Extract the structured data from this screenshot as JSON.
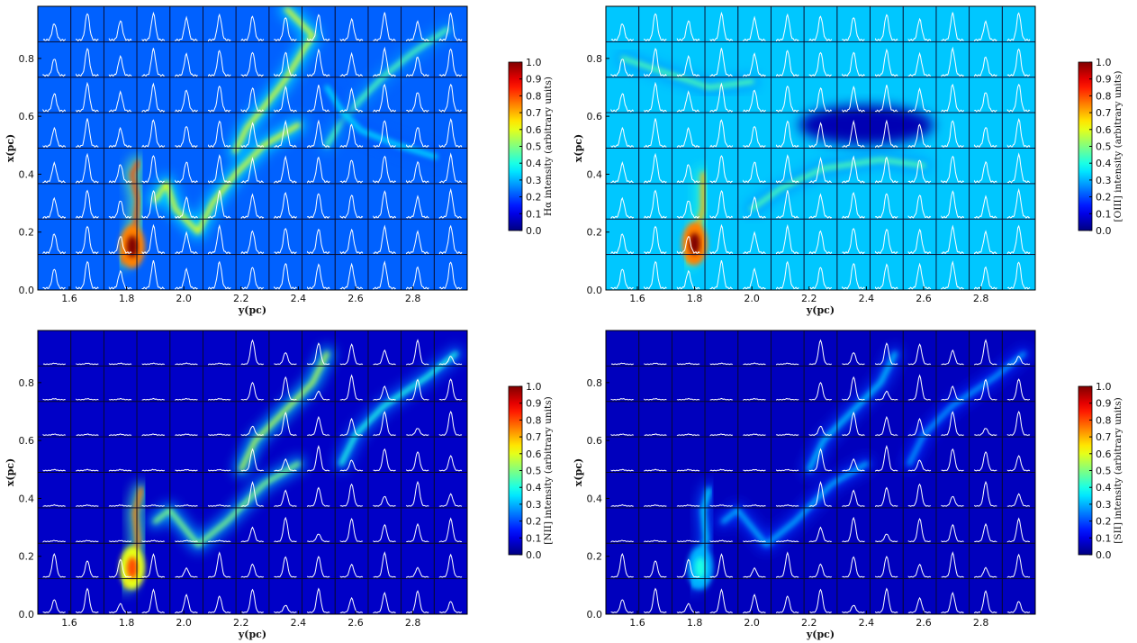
{
  "chart_data": [
    {
      "type": "heatmap",
      "xlabel": "y(pc)",
      "ylabel": "x(pc)",
      "xticks": [
        "1.6",
        "1.8",
        "2.0",
        "2.2",
        "2.4",
        "2.6",
        "2.8"
      ],
      "yticks": [
        "0.0",
        "0.2",
        "0.4",
        "0.6",
        "0.8"
      ],
      "xlim": [
        1.49,
        2.99
      ],
      "ylim": [
        0.0,
        0.98
      ],
      "colorbar_label": "Hα intensity (arbitrary units)",
      "colorbar_ticks": [
        "0.0",
        "0.1",
        "0.2",
        "0.3",
        "0.4",
        "0.5",
        "0.6",
        "0.7",
        "0.8",
        "0.9",
        "1.0"
      ],
      "clim": [
        0.0,
        1.0
      ],
      "colormap": "jet",
      "grid": "13 x 8 spectra overlay (white line profiles)",
      "intensity_feature": "filamentary ridges, brightest near (y≈1.82, x≈0.15)",
      "filaments": [
        {
          "points": [
            [
              1.79,
              0.1
            ],
            [
              1.81,
              0.16
            ],
            [
              1.83,
              0.22
            ],
            [
              1.84,
              0.31
            ],
            [
              1.82,
              0.4
            ],
            [
              1.84,
              0.44
            ]
          ],
          "intensity": 0.8
        },
        {
          "points": [
            [
              1.9,
              0.31
            ],
            [
              1.94,
              0.37
            ],
            [
              1.97,
              0.28
            ],
            [
              2.05,
              0.2
            ],
            [
              2.1,
              0.3
            ],
            [
              2.18,
              0.4
            ],
            [
              2.28,
              0.5
            ],
            [
              2.4,
              0.57
            ]
          ],
          "intensity": 0.6
        },
        {
          "points": [
            [
              2.18,
              0.48
            ],
            [
              2.22,
              0.56
            ],
            [
              2.27,
              0.62
            ],
            [
              2.35,
              0.72
            ],
            [
              2.4,
              0.8
            ],
            [
              2.45,
              0.88
            ],
            [
              2.36,
              0.97
            ]
          ],
          "intensity": 0.6
        },
        {
          "points": [
            [
              2.5,
              0.5
            ],
            [
              2.55,
              0.58
            ],
            [
              2.62,
              0.66
            ],
            [
              2.7,
              0.74
            ],
            [
              2.8,
              0.82
            ],
            [
              2.92,
              0.9
            ]
          ],
          "intensity": 0.45
        },
        {
          "points": [
            [
              2.5,
              0.7
            ],
            [
              2.55,
              0.62
            ],
            [
              2.62,
              0.55
            ],
            [
              2.75,
              0.5
            ],
            [
              2.88,
              0.46
            ]
          ],
          "intensity": 0.35
        }
      ],
      "bright_peak": {
        "x": 1.82,
        "y": 0.15,
        "intensity": 1.0
      },
      "background_level": 0.22,
      "spectra_amplitude": "uniform strong peaks in every cell"
    },
    {
      "type": "heatmap",
      "xlabel": "y(pc)",
      "ylabel": "x(pc)",
      "xticks": [
        "1.6",
        "1.8",
        "2.0",
        "2.2",
        "2.4",
        "2.6",
        "2.8"
      ],
      "yticks": [
        "0.0",
        "0.2",
        "0.4",
        "0.6",
        "0.8"
      ],
      "xlim": [
        1.49,
        2.99
      ],
      "ylim": [
        0.0,
        0.98
      ],
      "colorbar_label": "[OIII] intensity (arbitrary units)",
      "colorbar_ticks": [
        "0.0",
        "0.1",
        "0.2",
        "0.3",
        "0.4",
        "0.5",
        "0.6",
        "0.7",
        "0.8",
        "0.9",
        "1.0"
      ],
      "clim": [
        0.0,
        1.0
      ],
      "colormap": "jet",
      "grid": "13 x 8 spectra overlay (white line profiles)",
      "intensity_feature": "diffuse emission, bright patch near (y≈1.80, x≈0.16), dark pillar near (y≈2.4, x≈0.57)",
      "filaments": [
        {
          "points": [
            [
              1.78,
              0.1
            ],
            [
              1.8,
              0.18
            ],
            [
              1.83,
              0.28
            ],
            [
              1.83,
              0.4
            ]
          ],
          "intensity": 0.7
        },
        {
          "points": [
            [
              2.0,
              0.28
            ],
            [
              2.1,
              0.35
            ],
            [
              2.25,
              0.42
            ],
            [
              2.45,
              0.45
            ],
            [
              2.6,
              0.43
            ]
          ],
          "intensity": 0.45
        },
        {
          "points": [
            [
              1.55,
              0.8
            ],
            [
              1.7,
              0.75
            ],
            [
              1.85,
              0.7
            ],
            [
              2.0,
              0.72
            ]
          ],
          "intensity": 0.45
        }
      ],
      "bright_peak": {
        "x": 1.8,
        "y": 0.16,
        "intensity": 1.0
      },
      "background_level": 0.32,
      "dark_region": {
        "x": 2.4,
        "y": 0.57,
        "level": 0.05
      },
      "spectra_amplitude": "uniform strong peaks in every cell"
    },
    {
      "type": "heatmap",
      "xlabel": "y(pc)",
      "ylabel": "x(pc)",
      "xticks": [
        "1.6",
        "1.8",
        "2.0",
        "2.2",
        "2.4",
        "2.6",
        "2.8"
      ],
      "yticks": [
        "0.0",
        "0.2",
        "0.4",
        "0.6",
        "0.8"
      ],
      "xlim": [
        1.49,
        2.99
      ],
      "ylim": [
        0.0,
        0.98
      ],
      "colorbar_label": "[NII] intensity (arbitrary units)",
      "colorbar_ticks": [
        "0.0",
        "0.1",
        "0.2",
        "0.3",
        "0.4",
        "0.5",
        "0.6",
        "0.7",
        "0.8",
        "0.9",
        "1.0"
      ],
      "clim": [
        0.0,
        1.0
      ],
      "colormap": "jet",
      "grid": "13 x 8 spectra overlay (white line profiles)",
      "intensity_feature": "dark left half; filaments at ridges, peak near (y≈1.82, x≈0.16)",
      "filaments": [
        {
          "points": [
            [
              1.8,
              0.1
            ],
            [
              1.82,
              0.17
            ],
            [
              1.84,
              0.25
            ],
            [
              1.83,
              0.35
            ],
            [
              1.85,
              0.43
            ]
          ],
          "intensity": 0.75
        },
        {
          "points": [
            [
              1.9,
              0.32
            ],
            [
              1.95,
              0.36
            ],
            [
              2.05,
              0.24
            ],
            [
              2.15,
              0.32
            ],
            [
              2.28,
              0.45
            ],
            [
              2.4,
              0.52
            ]
          ],
          "intensity": 0.5
        },
        {
          "points": [
            [
              2.2,
              0.5
            ],
            [
              2.25,
              0.6
            ],
            [
              2.35,
              0.7
            ],
            [
              2.45,
              0.8
            ],
            [
              2.5,
              0.9
            ]
          ],
          "intensity": 0.55
        },
        {
          "points": [
            [
              2.55,
              0.52
            ],
            [
              2.6,
              0.62
            ],
            [
              2.7,
              0.72
            ],
            [
              2.85,
              0.82
            ],
            [
              2.95,
              0.9
            ]
          ],
          "intensity": 0.4
        }
      ],
      "bright_peak": {
        "x": 1.82,
        "y": 0.16,
        "intensity": 0.8
      },
      "background_level": 0.07,
      "spectra_amplitude": "only in emitting regions (right and filaments)"
    },
    {
      "type": "heatmap",
      "xlabel": "y(pc)",
      "ylabel": "x(pc)",
      "xticks": [
        "1.6",
        "1.8",
        "2.0",
        "2.2",
        "2.4",
        "2.6",
        "2.8"
      ],
      "yticks": [
        "0.0",
        "0.2",
        "0.4",
        "0.6",
        "0.8"
      ],
      "xlim": [
        1.49,
        2.99
      ],
      "ylim": [
        0.0,
        0.98
      ],
      "colorbar_label": "[SII] intensity (arbitrary units)",
      "colorbar_ticks": [
        "0.0",
        "0.1",
        "0.2",
        "0.3",
        "0.4",
        "0.5",
        "0.6",
        "0.7",
        "0.8",
        "0.9",
        "1.0"
      ],
      "clim": [
        0.0,
        1.0
      ],
      "colormap": "jet",
      "grid": "13 x 8 spectra overlay (white line profiles)",
      "intensity_feature": "dark left half; faint filaments, mostly below 0.4",
      "filaments": [
        {
          "points": [
            [
              1.8,
              0.1
            ],
            [
              1.82,
              0.18
            ],
            [
              1.84,
              0.26
            ],
            [
              1.83,
              0.36
            ],
            [
              1.85,
              0.43
            ]
          ],
          "intensity": 0.35
        },
        {
          "points": [
            [
              1.9,
              0.32
            ],
            [
              1.95,
              0.36
            ],
            [
              2.05,
              0.24
            ],
            [
              2.15,
              0.32
            ],
            [
              2.28,
              0.45
            ],
            [
              2.4,
              0.52
            ]
          ],
          "intensity": 0.3
        },
        {
          "points": [
            [
              2.2,
              0.5
            ],
            [
              2.25,
              0.6
            ],
            [
              2.35,
              0.7
            ],
            [
              2.45,
              0.8
            ],
            [
              2.5,
              0.9
            ]
          ],
          "intensity": 0.32
        },
        {
          "points": [
            [
              2.55,
              0.52
            ],
            [
              2.6,
              0.62
            ],
            [
              2.7,
              0.72
            ],
            [
              2.85,
              0.82
            ],
            [
              2.95,
              0.9
            ]
          ],
          "intensity": 0.28
        }
      ],
      "bright_peak": {
        "x": 1.82,
        "y": 0.16,
        "intensity": 0.4
      },
      "background_level": 0.06,
      "spectra_amplitude": "only in emitting regions (right and filaments)"
    }
  ]
}
